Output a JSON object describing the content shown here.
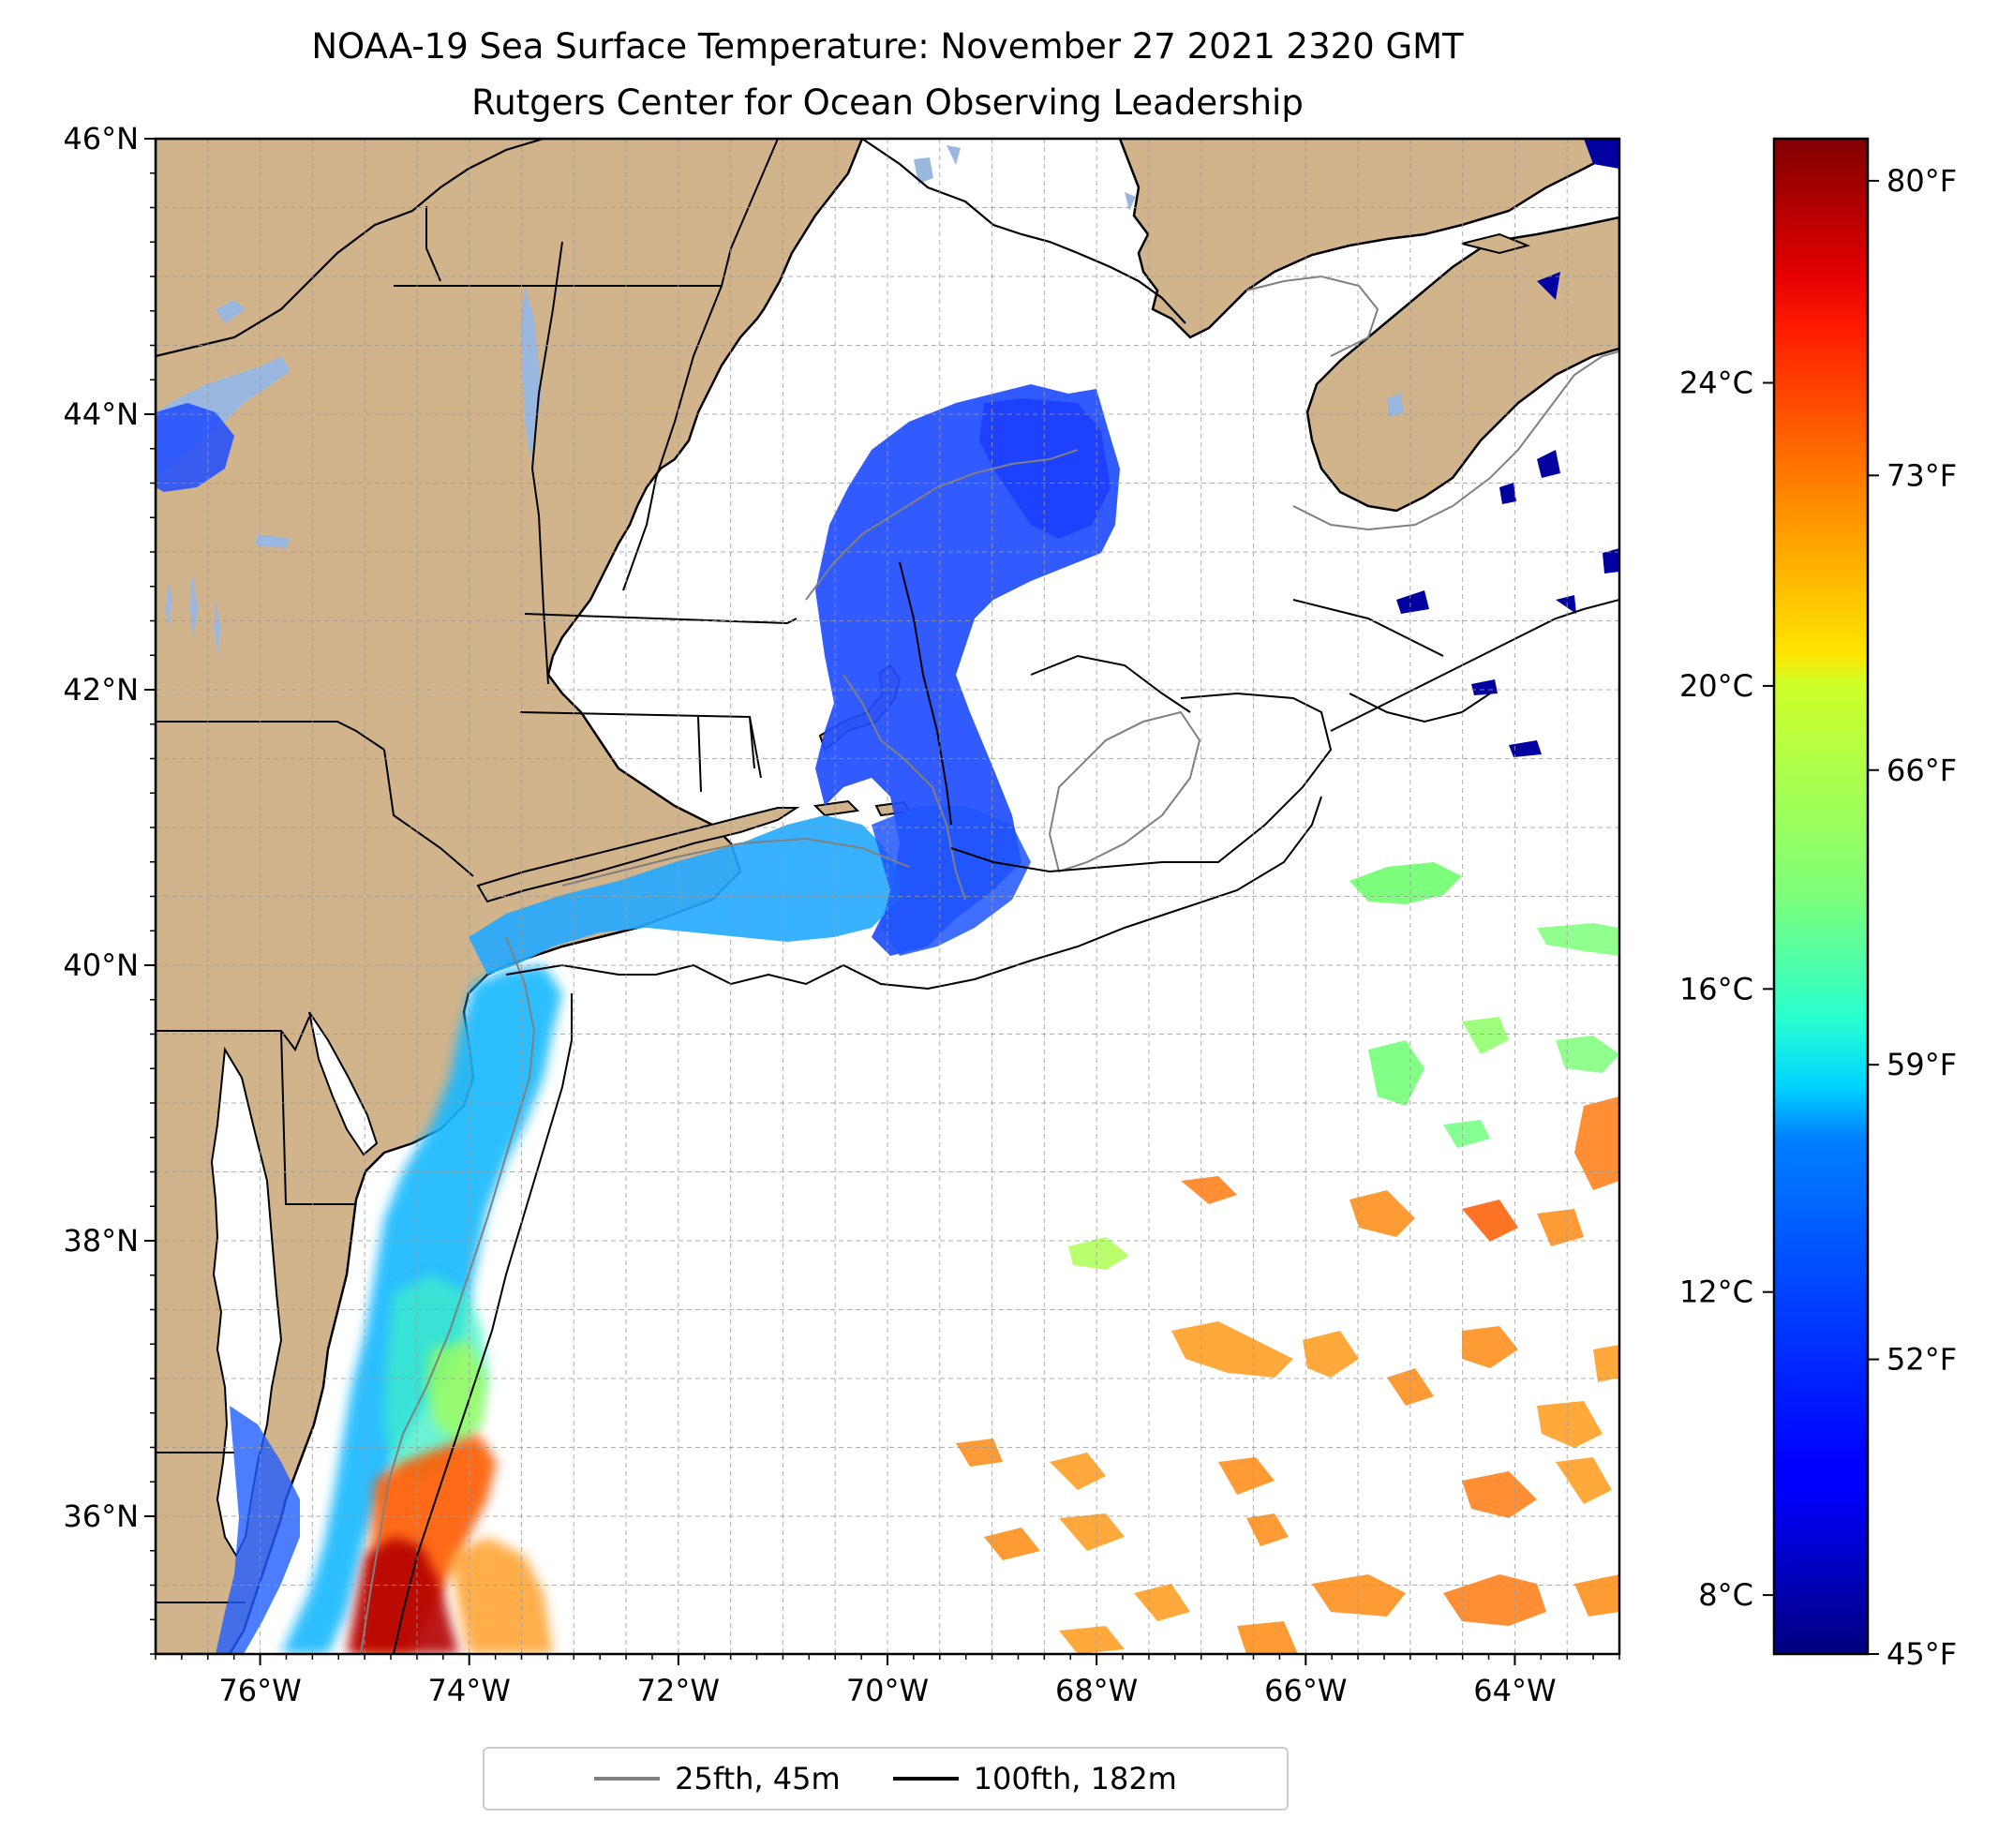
{
  "title": {
    "line1": "NOAA-19 Sea Surface Temperature: November 27 2021 2320 GMT",
    "line2": "Rutgers Center for Ocean Observing Leadership"
  },
  "map": {
    "lon_range": [
      -77,
      -63
    ],
    "lat_range": [
      35,
      46
    ],
    "lon_ticks": [
      {
        "value": -76,
        "label": "76°W"
      },
      {
        "value": -74,
        "label": "74°W"
      },
      {
        "value": -72,
        "label": "72°W"
      },
      {
        "value": -70,
        "label": "70°W"
      },
      {
        "value": -68,
        "label": "68°W"
      },
      {
        "value": -66,
        "label": "66°W"
      },
      {
        "value": -64,
        "label": "64°W"
      }
    ],
    "lat_ticks": [
      {
        "value": 46,
        "label": "46°N"
      },
      {
        "value": 44,
        "label": "44°N"
      },
      {
        "value": 42,
        "label": "42°N"
      },
      {
        "value": 40,
        "label": "40°N"
      },
      {
        "value": 38,
        "label": "38°N"
      },
      {
        "value": 36,
        "label": "36°N"
      }
    ],
    "grid": true,
    "colors": {
      "land": "#d2b48c",
      "water_inland": "#9ab7e0",
      "ocean_nodata": "#ffffff",
      "isobath_25": "#808080",
      "isobath_100": "#000000"
    }
  },
  "colorbar": {
    "colormap": "jet",
    "range_f": [
      45,
      81
    ],
    "celsius_ticks": [
      {
        "value": 24,
        "label": "24°C"
      },
      {
        "value": 20,
        "label": "20°C"
      },
      {
        "value": 16,
        "label": "16°C"
      },
      {
        "value": 12,
        "label": "12°C"
      },
      {
        "value": 8,
        "label": "8°C"
      }
    ],
    "fahrenheit_ticks": [
      {
        "value": 80,
        "label": "80°F"
      },
      {
        "value": 73,
        "label": "73°F"
      },
      {
        "value": 66,
        "label": "66°F"
      },
      {
        "value": 59,
        "label": "59°F"
      },
      {
        "value": 52,
        "label": "52°F"
      },
      {
        "value": 45,
        "label": "45°F"
      }
    ]
  },
  "legend": {
    "placement": "bottom-center",
    "items": [
      {
        "label": "25fth, 45m",
        "color": "#808080"
      },
      {
        "label": "100fth, 182m",
        "color": "#000000"
      }
    ]
  }
}
